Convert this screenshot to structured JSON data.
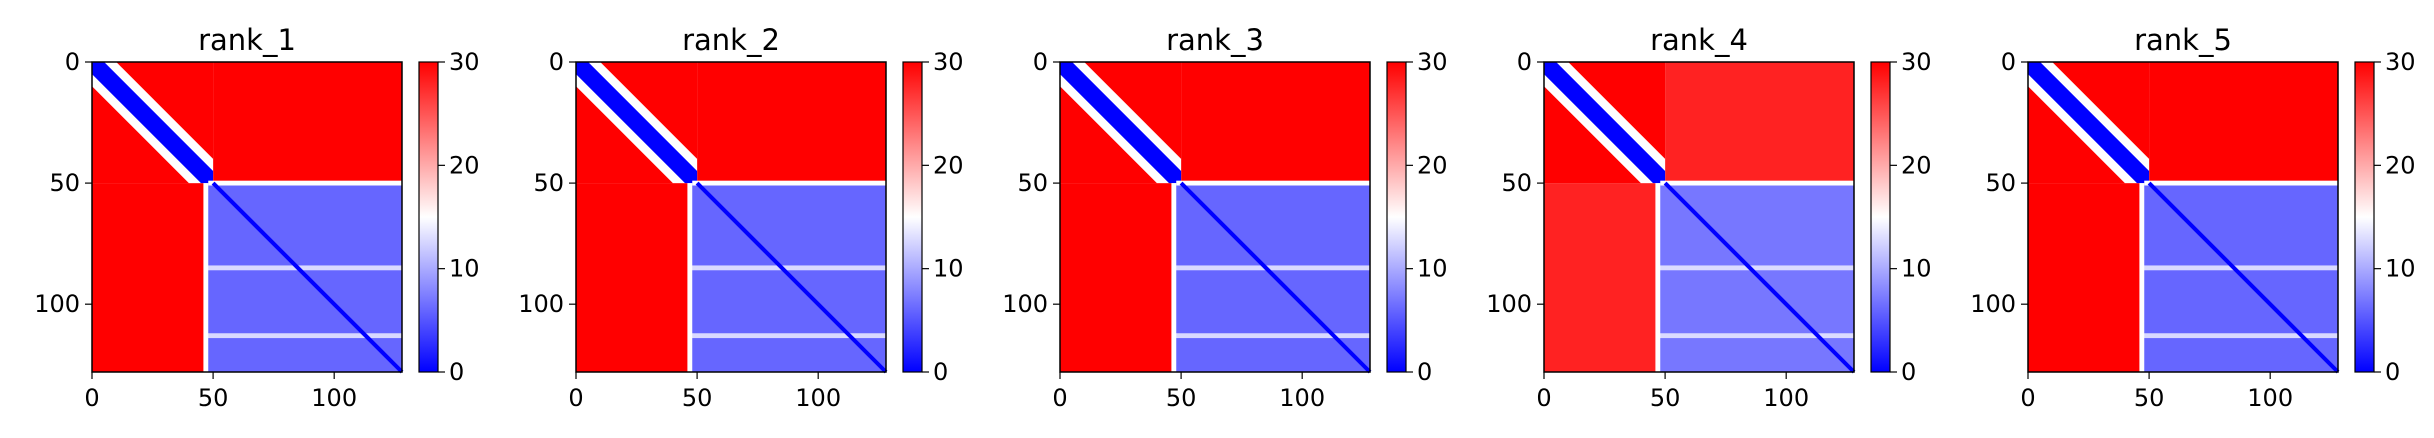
{
  "chart_data": [
    {
      "type": "heatmap",
      "title": "rank_1",
      "matrix_size": 128,
      "xticks": [
        0,
        50,
        100
      ],
      "yticks": [
        0,
        50,
        100
      ],
      "colorbar": {
        "min": 0,
        "max": 30,
        "ticks": [
          0,
          10,
          20,
          30
        ],
        "colors": [
          "#0000ff",
          "#ffffff",
          "#ff0000"
        ]
      },
      "blocks": [
        {
          "rows": [
            0,
            50
          ],
          "cols": [
            0,
            50
          ],
          "pattern": "distance",
          "near_value": 0,
          "far_value": 30
        },
        {
          "rows": [
            0,
            50
          ],
          "cols": [
            50,
            128
          ],
          "value": 30
        },
        {
          "rows": [
            50,
            128
          ],
          "cols": [
            0,
            47
          ],
          "value": 30
        },
        {
          "rows": [
            50,
            128
          ],
          "cols": [
            47,
            128
          ],
          "value": 6
        }
      ],
      "white_bands": [
        85,
        113
      ]
    },
    {
      "type": "heatmap",
      "title": "rank_2",
      "matrix_size": 128,
      "xticks": [
        0,
        50,
        100
      ],
      "yticks": [
        0,
        50,
        100
      ],
      "colorbar": {
        "min": 0,
        "max": 30,
        "ticks": [
          0,
          10,
          20,
          30
        ],
        "colors": [
          "#0000ff",
          "#ffffff",
          "#ff0000"
        ]
      },
      "blocks": [
        {
          "rows": [
            0,
            50
          ],
          "cols": [
            0,
            50
          ],
          "pattern": "distance",
          "near_value": 0,
          "far_value": 30
        },
        {
          "rows": [
            0,
            50
          ],
          "cols": [
            50,
            128
          ],
          "value": 30
        },
        {
          "rows": [
            50,
            128
          ],
          "cols": [
            0,
            47
          ],
          "value": 30
        },
        {
          "rows": [
            50,
            128
          ],
          "cols": [
            47,
            128
          ],
          "value": 6
        }
      ],
      "white_bands": [
        85,
        113
      ]
    },
    {
      "type": "heatmap",
      "title": "rank_3",
      "matrix_size": 128,
      "xticks": [
        0,
        50,
        100
      ],
      "yticks": [
        0,
        50,
        100
      ],
      "colorbar": {
        "min": 0,
        "max": 30,
        "ticks": [
          0,
          10,
          20,
          30
        ],
        "colors": [
          "#0000ff",
          "#ffffff",
          "#ff0000"
        ]
      },
      "blocks": [
        {
          "rows": [
            0,
            50
          ],
          "cols": [
            0,
            50
          ],
          "pattern": "distance",
          "near_value": 0,
          "far_value": 30
        },
        {
          "rows": [
            0,
            50
          ],
          "cols": [
            50,
            128
          ],
          "value": 30
        },
        {
          "rows": [
            50,
            128
          ],
          "cols": [
            0,
            47
          ],
          "value": 30
        },
        {
          "rows": [
            50,
            128
          ],
          "cols": [
            47,
            128
          ],
          "value": 6
        }
      ],
      "white_bands": [
        85,
        113
      ]
    },
    {
      "type": "heatmap",
      "title": "rank_4",
      "matrix_size": 128,
      "xticks": [
        0,
        50,
        100
      ],
      "yticks": [
        0,
        50,
        100
      ],
      "colorbar": {
        "min": 0,
        "max": 30,
        "ticks": [
          0,
          10,
          20,
          30
        ],
        "colors": [
          "#0000ff",
          "#ffffff",
          "#ff0000"
        ]
      },
      "blocks": [
        {
          "rows": [
            0,
            50
          ],
          "cols": [
            0,
            50
          ],
          "pattern": "distance",
          "near_value": 0,
          "far_value": 30
        },
        {
          "rows": [
            0,
            50
          ],
          "cols": [
            50,
            128
          ],
          "value": 28
        },
        {
          "rows": [
            50,
            128
          ],
          "cols": [
            0,
            47
          ],
          "value": 28
        },
        {
          "rows": [
            50,
            128
          ],
          "cols": [
            47,
            128
          ],
          "value": 7
        }
      ],
      "white_bands": [
        85,
        113
      ]
    },
    {
      "type": "heatmap",
      "title": "rank_5",
      "matrix_size": 128,
      "xticks": [
        0,
        50,
        100
      ],
      "yticks": [
        0,
        50,
        100
      ],
      "colorbar": {
        "min": 0,
        "max": 30,
        "ticks": [
          0,
          10,
          20,
          30
        ],
        "colors": [
          "#0000ff",
          "#ffffff",
          "#ff0000"
        ]
      },
      "blocks": [
        {
          "rows": [
            0,
            50
          ],
          "cols": [
            0,
            50
          ],
          "pattern": "distance",
          "near_value": 0,
          "far_value": 30
        },
        {
          "rows": [
            0,
            50
          ],
          "cols": [
            50,
            128
          ],
          "value": 30
        },
        {
          "rows": [
            50,
            128
          ],
          "cols": [
            0,
            47
          ],
          "value": 30
        },
        {
          "rows": [
            50,
            128
          ],
          "cols": [
            47,
            128
          ],
          "value": 6
        }
      ],
      "white_bands": [
        85,
        113
      ]
    }
  ]
}
